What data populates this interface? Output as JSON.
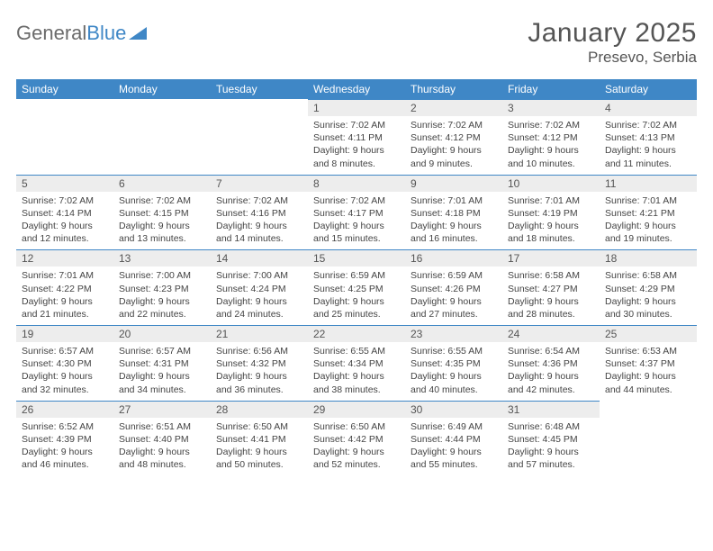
{
  "brand": {
    "part1": "General",
    "part2": "Blue"
  },
  "title": {
    "month": "January 2025",
    "location": "Presevo, Serbia"
  },
  "colors": {
    "header_bg": "#3f87c6",
    "header_text": "#ffffff",
    "daynum_bg": "#ededed",
    "cell_border": "#3f87c6",
    "body_text": "#444444"
  },
  "weekdays": [
    "Sunday",
    "Monday",
    "Tuesday",
    "Wednesday",
    "Thursday",
    "Friday",
    "Saturday"
  ],
  "weeks": [
    [
      null,
      null,
      null,
      {
        "n": "1",
        "sr": "7:02 AM",
        "ss": "4:11 PM",
        "dl": "9 hours and 8 minutes."
      },
      {
        "n": "2",
        "sr": "7:02 AM",
        "ss": "4:12 PM",
        "dl": "9 hours and 9 minutes."
      },
      {
        "n": "3",
        "sr": "7:02 AM",
        "ss": "4:12 PM",
        "dl": "9 hours and 10 minutes."
      },
      {
        "n": "4",
        "sr": "7:02 AM",
        "ss": "4:13 PM",
        "dl": "9 hours and 11 minutes."
      }
    ],
    [
      {
        "n": "5",
        "sr": "7:02 AM",
        "ss": "4:14 PM",
        "dl": "9 hours and 12 minutes."
      },
      {
        "n": "6",
        "sr": "7:02 AM",
        "ss": "4:15 PM",
        "dl": "9 hours and 13 minutes."
      },
      {
        "n": "7",
        "sr": "7:02 AM",
        "ss": "4:16 PM",
        "dl": "9 hours and 14 minutes."
      },
      {
        "n": "8",
        "sr": "7:02 AM",
        "ss": "4:17 PM",
        "dl": "9 hours and 15 minutes."
      },
      {
        "n": "9",
        "sr": "7:01 AM",
        "ss": "4:18 PM",
        "dl": "9 hours and 16 minutes."
      },
      {
        "n": "10",
        "sr": "7:01 AM",
        "ss": "4:19 PM",
        "dl": "9 hours and 18 minutes."
      },
      {
        "n": "11",
        "sr": "7:01 AM",
        "ss": "4:21 PM",
        "dl": "9 hours and 19 minutes."
      }
    ],
    [
      {
        "n": "12",
        "sr": "7:01 AM",
        "ss": "4:22 PM",
        "dl": "9 hours and 21 minutes."
      },
      {
        "n": "13",
        "sr": "7:00 AM",
        "ss": "4:23 PM",
        "dl": "9 hours and 22 minutes."
      },
      {
        "n": "14",
        "sr": "7:00 AM",
        "ss": "4:24 PM",
        "dl": "9 hours and 24 minutes."
      },
      {
        "n": "15",
        "sr": "6:59 AM",
        "ss": "4:25 PM",
        "dl": "9 hours and 25 minutes."
      },
      {
        "n": "16",
        "sr": "6:59 AM",
        "ss": "4:26 PM",
        "dl": "9 hours and 27 minutes."
      },
      {
        "n": "17",
        "sr": "6:58 AM",
        "ss": "4:27 PM",
        "dl": "9 hours and 28 minutes."
      },
      {
        "n": "18",
        "sr": "6:58 AM",
        "ss": "4:29 PM",
        "dl": "9 hours and 30 minutes."
      }
    ],
    [
      {
        "n": "19",
        "sr": "6:57 AM",
        "ss": "4:30 PM",
        "dl": "9 hours and 32 minutes."
      },
      {
        "n": "20",
        "sr": "6:57 AM",
        "ss": "4:31 PM",
        "dl": "9 hours and 34 minutes."
      },
      {
        "n": "21",
        "sr": "6:56 AM",
        "ss": "4:32 PM",
        "dl": "9 hours and 36 minutes."
      },
      {
        "n": "22",
        "sr": "6:55 AM",
        "ss": "4:34 PM",
        "dl": "9 hours and 38 minutes."
      },
      {
        "n": "23",
        "sr": "6:55 AM",
        "ss": "4:35 PM",
        "dl": "9 hours and 40 minutes."
      },
      {
        "n": "24",
        "sr": "6:54 AM",
        "ss": "4:36 PM",
        "dl": "9 hours and 42 minutes."
      },
      {
        "n": "25",
        "sr": "6:53 AM",
        "ss": "4:37 PM",
        "dl": "9 hours and 44 minutes."
      }
    ],
    [
      {
        "n": "26",
        "sr": "6:52 AM",
        "ss": "4:39 PM",
        "dl": "9 hours and 46 minutes."
      },
      {
        "n": "27",
        "sr": "6:51 AM",
        "ss": "4:40 PM",
        "dl": "9 hours and 48 minutes."
      },
      {
        "n": "28",
        "sr": "6:50 AM",
        "ss": "4:41 PM",
        "dl": "9 hours and 50 minutes."
      },
      {
        "n": "29",
        "sr": "6:50 AM",
        "ss": "4:42 PM",
        "dl": "9 hours and 52 minutes."
      },
      {
        "n": "30",
        "sr": "6:49 AM",
        "ss": "4:44 PM",
        "dl": "9 hours and 55 minutes."
      },
      {
        "n": "31",
        "sr": "6:48 AM",
        "ss": "4:45 PM",
        "dl": "9 hours and 57 minutes."
      },
      null
    ]
  ],
  "labels": {
    "sunrise": "Sunrise:",
    "sunset": "Sunset:",
    "daylight": "Daylight:"
  }
}
